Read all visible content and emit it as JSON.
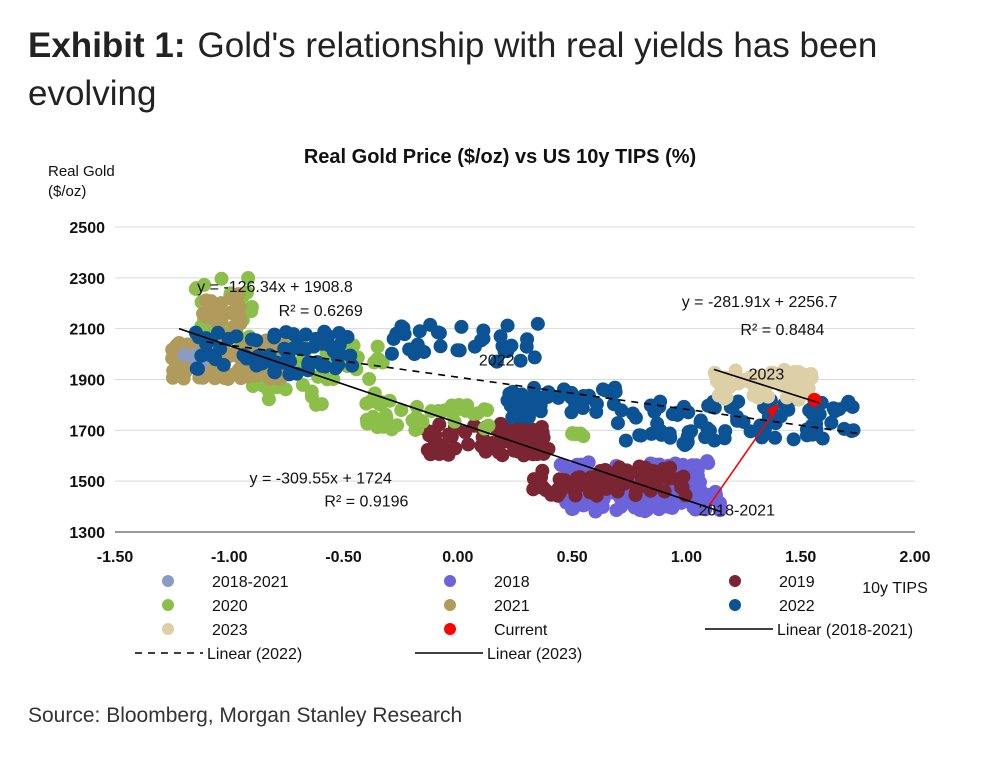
{
  "exhibit": {
    "label": "Exhibit 1:",
    "title": "Gold's relationship with real yields has been evolving"
  },
  "source": "Source: Bloomberg, Morgan Stanley Research",
  "chart_data": {
    "type": "scatter",
    "title": "Real Gold Price ($/oz) vs US 10y TIPS (%)",
    "ylabel": "Real Gold ($/oz)",
    "xlabel": "10y TIPS",
    "xlim": [
      -1.5,
      2.0
    ],
    "ylim": [
      1300,
      2500
    ],
    "xticks": [
      "-1.50",
      "-1.00",
      "-0.50",
      "0.00",
      "0.50",
      "1.00",
      "1.50",
      "2.00"
    ],
    "yticks": [
      "1300",
      "1500",
      "1700",
      "1900",
      "2100",
      "2300",
      "2500"
    ],
    "grid": "horizontal",
    "series": [
      {
        "name": "2018",
        "color": "#6a63d9",
        "clusters": [
          {
            "x": [
              0.45,
              1.1
            ],
            "y": [
              1390,
              1580
            ],
            "n": 110
          },
          {
            "x": [
              0.6,
              1.15
            ],
            "y": [
              1380,
              1460
            ],
            "n": 50
          }
        ]
      },
      {
        "name": "2019",
        "color": "#7b2533",
        "clusters": [
          {
            "x": [
              -0.15,
              0.4
            ],
            "y": [
              1600,
              1730
            ],
            "n": 70
          },
          {
            "x": [
              0.3,
              1.0
            ],
            "y": [
              1440,
              1560
            ],
            "n": 80
          }
        ]
      },
      {
        "name": "2020",
        "color": "#8cbf4a",
        "clusters": [
          {
            "x": [
              -1.15,
              -0.9
            ],
            "y": [
              2050,
              2300
            ],
            "n": 30
          },
          {
            "x": [
              -0.9,
              -0.3
            ],
            "y": [
              1800,
              2050
            ],
            "n": 45
          },
          {
            "x": [
              -0.4,
              0.15
            ],
            "y": [
              1700,
              1820
            ],
            "n": 40
          },
          {
            "x": [
              0.5,
              0.6
            ],
            "y": [
              1650,
              1720
            ],
            "n": 6
          }
        ]
      },
      {
        "name": "2021",
        "color": "#b09b5c",
        "clusters": [
          {
            "x": [
              -1.25,
              -0.75
            ],
            "y": [
              1900,
              2060
            ],
            "n": 120
          },
          {
            "x": [
              -1.12,
              -0.95
            ],
            "y": [
              2080,
              2240
            ],
            "n": 25
          }
        ]
      },
      {
        "name": "2018-2021",
        "color": "#8a9cc4",
        "clusters": [
          {
            "x": [
              -1.22,
              -1.05
            ],
            "y": [
              1960,
              2000
            ],
            "n": 6
          }
        ]
      },
      {
        "name": "2022",
        "color": "#0b5394",
        "clusters": [
          {
            "x": [
              -1.15,
              -0.45
            ],
            "y": [
              1920,
              2090
            ],
            "n": 70
          },
          {
            "x": [
              -0.3,
              0.35
            ],
            "y": [
              1970,
              2120
            ],
            "n": 35
          },
          {
            "x": [
              0.2,
              0.7
            ],
            "y": [
              1750,
              1870
            ],
            "n": 45
          },
          {
            "x": [
              0.7,
              1.75
            ],
            "y": [
              1640,
              1820
            ],
            "n": 90
          }
        ]
      },
      {
        "name": "2023",
        "color": "#ddd0a7",
        "clusters": [
          {
            "x": [
              1.12,
              1.55
            ],
            "y": [
              1820,
              1940
            ],
            "n": 60
          }
        ]
      },
      {
        "name": "Current",
        "color": "#ff0000",
        "points": [
          [
            1.56,
            1820
          ]
        ]
      }
    ],
    "trendlines": [
      {
        "name": "Linear (2018-2021)",
        "style": "solid",
        "x": [
          -1.22,
          1.15
        ],
        "y": [
          2100,
          1380
        ]
      },
      {
        "name": "Linear (2022)",
        "style": "dashed",
        "x": [
          -1.1,
          1.75
        ],
        "y": [
          2048,
          1688
        ]
      },
      {
        "name": "Linear (2023)",
        "style": "solid",
        "x": [
          1.12,
          1.58
        ],
        "y": [
          1940,
          1808
        ]
      }
    ],
    "annotations": [
      {
        "text": "y = -126.34x + 1908.8",
        "x": -0.8,
        "y": 2245
      },
      {
        "text": "R² = 0.6269",
        "x": -0.6,
        "y": 2150
      },
      {
        "text": "y = -281.91x + 2256.7",
        "x": 1.32,
        "y": 2185
      },
      {
        "text": "R² = 0.8484",
        "x": 1.42,
        "y": 2075
      },
      {
        "text": "2022",
        "x": 0.17,
        "y": 1955
      },
      {
        "text": "2023",
        "x": 1.35,
        "y": 1900
      },
      {
        "text": "y = -309.55x + 1724",
        "x": -0.6,
        "y": 1490
      },
      {
        "text": "R² = 0.9196",
        "x": -0.4,
        "y": 1400
      },
      {
        "text": "2018-2021",
        "x": 1.22,
        "y": 1365
      }
    ],
    "legend": {
      "placement": "bottom",
      "items": [
        {
          "label": "2018-2021",
          "marker": "dot",
          "color": "#8a9cc4"
        },
        {
          "label": "2018",
          "marker": "dot",
          "color": "#6a63d9"
        },
        {
          "label": "2019",
          "marker": "dot",
          "color": "#7b2533"
        },
        {
          "label": "2020",
          "marker": "dot",
          "color": "#8cbf4a"
        },
        {
          "label": "2021",
          "marker": "dot",
          "color": "#b09b5c"
        },
        {
          "label": "2022",
          "marker": "dot",
          "color": "#0b5394"
        },
        {
          "label": "2023",
          "marker": "dot",
          "color": "#ddd0a7"
        },
        {
          "label": "Current",
          "marker": "dot",
          "color": "#ff0000"
        },
        {
          "label": "Linear (2018-2021)",
          "marker": "solid-line",
          "color": "#000000"
        },
        {
          "label": "Linear (2022)",
          "marker": "dashed-line",
          "color": "#000000"
        },
        {
          "label": "Linear (2023)",
          "marker": "solid-line",
          "color": "#000000"
        }
      ]
    }
  }
}
